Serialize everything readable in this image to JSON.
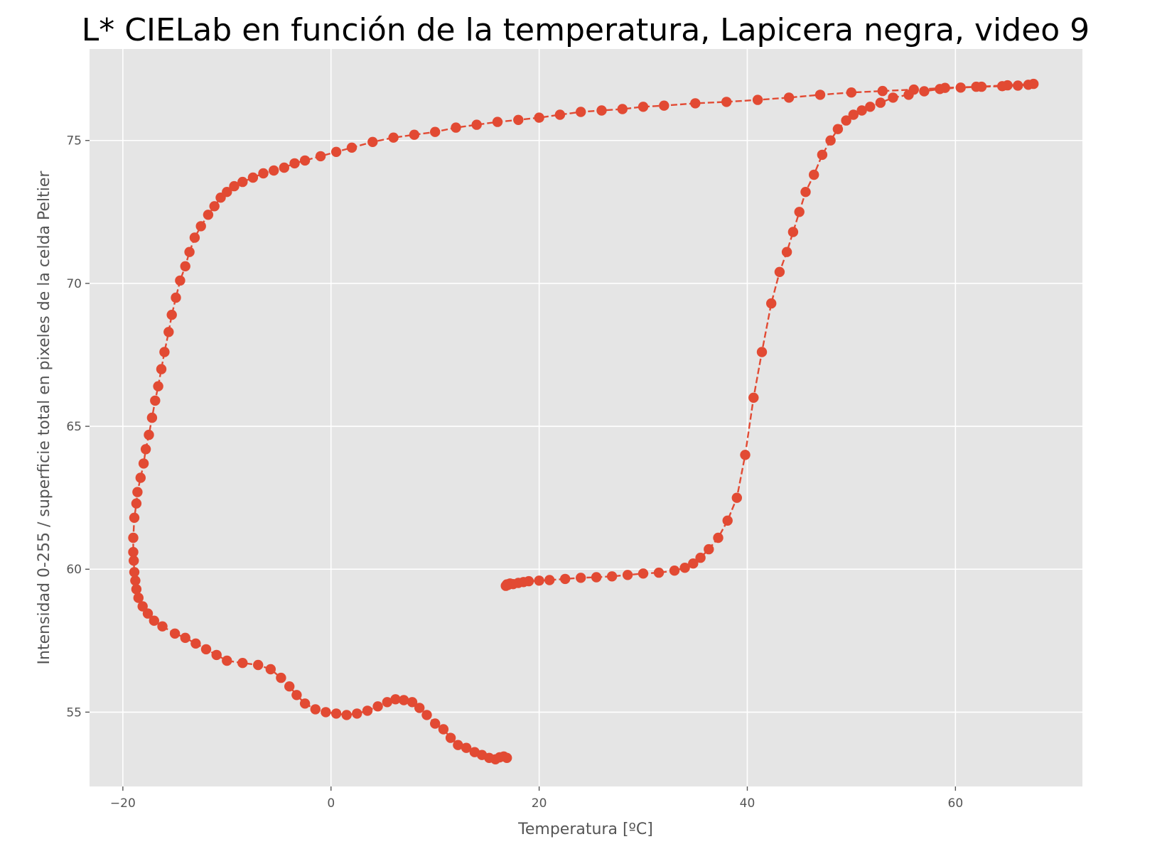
{
  "chart_data": {
    "type": "line",
    "title": "L* CIELab en función de la temperatura, Lapicera negra, video 9",
    "xlabel": "Temperatura [ºC]",
    "ylabel": "Intensidad 0-255 / superficie total en pixeles de la celda Peltier",
    "xlim": [
      -23.2,
      72.2
    ],
    "ylim": [
      52.4,
      78.2
    ],
    "xticks": [
      -20,
      0,
      20,
      40,
      60
    ],
    "xtick_labels": [
      "−20",
      "0",
      "20",
      "40",
      "60"
    ],
    "yticks": [
      55,
      60,
      65,
      70,
      75
    ],
    "ytick_labels": [
      "55",
      "60",
      "65",
      "70",
      "75"
    ],
    "grid": true,
    "style": "ggplot",
    "colors": {
      "series": "#E24A33",
      "plot_bg": "#E5E5E5",
      "grid": "#FFFFFF"
    },
    "series": [
      {
        "marker": "circle",
        "linestyle": "dashed",
        "points": [
          [
            16.9,
            53.4
          ],
          [
            16.6,
            53.45
          ],
          [
            16.2,
            53.42
          ],
          [
            15.8,
            53.35
          ],
          [
            15.2,
            53.4
          ],
          [
            14.5,
            53.5
          ],
          [
            13.8,
            53.6
          ],
          [
            13.0,
            53.75
          ],
          [
            12.2,
            53.85
          ],
          [
            11.5,
            54.1
          ],
          [
            10.8,
            54.4
          ],
          [
            10.0,
            54.6
          ],
          [
            9.2,
            54.9
          ],
          [
            8.5,
            55.15
          ],
          [
            7.8,
            55.35
          ],
          [
            7.0,
            55.42
          ],
          [
            6.2,
            55.45
          ],
          [
            5.4,
            55.35
          ],
          [
            4.5,
            55.2
          ],
          [
            3.5,
            55.05
          ],
          [
            2.5,
            54.95
          ],
          [
            1.5,
            54.9
          ],
          [
            0.5,
            54.95
          ],
          [
            -0.5,
            55.0
          ],
          [
            -1.5,
            55.1
          ],
          [
            -2.5,
            55.3
          ],
          [
            -3.3,
            55.6
          ],
          [
            -4.0,
            55.9
          ],
          [
            -4.8,
            56.2
          ],
          [
            -5.8,
            56.5
          ],
          [
            -7.0,
            56.65
          ],
          [
            -8.5,
            56.72
          ],
          [
            -10.0,
            56.8
          ],
          [
            -11.0,
            57.0
          ],
          [
            -12.0,
            57.2
          ],
          [
            -13.0,
            57.4
          ],
          [
            -14.0,
            57.6
          ],
          [
            -15.0,
            57.75
          ],
          [
            -16.2,
            58.0
          ],
          [
            -17.0,
            58.2
          ],
          [
            -17.6,
            58.45
          ],
          [
            -18.1,
            58.7
          ],
          [
            -18.5,
            59.0
          ],
          [
            -18.7,
            59.3
          ],
          [
            -18.8,
            59.6
          ],
          [
            -18.9,
            59.9
          ],
          [
            -18.95,
            60.3
          ],
          [
            -19.0,
            60.6
          ],
          [
            -19.0,
            61.1
          ],
          [
            -18.9,
            61.8
          ],
          [
            -18.7,
            62.3
          ],
          [
            -18.6,
            62.7
          ],
          [
            -18.3,
            63.2
          ],
          [
            -18.0,
            63.7
          ],
          [
            -17.8,
            64.2
          ],
          [
            -17.5,
            64.7
          ],
          [
            -17.2,
            65.3
          ],
          [
            -16.9,
            65.9
          ],
          [
            -16.6,
            66.4
          ],
          [
            -16.3,
            67.0
          ],
          [
            -16.0,
            67.6
          ],
          [
            -15.6,
            68.3
          ],
          [
            -15.3,
            68.9
          ],
          [
            -14.9,
            69.5
          ],
          [
            -14.5,
            70.1
          ],
          [
            -14.0,
            70.6
          ],
          [
            -13.6,
            71.1
          ],
          [
            -13.1,
            71.6
          ],
          [
            -12.5,
            72.0
          ],
          [
            -11.8,
            72.4
          ],
          [
            -11.2,
            72.7
          ],
          [
            -10.6,
            73.0
          ],
          [
            -10.0,
            73.2
          ],
          [
            -9.3,
            73.4
          ],
          [
            -8.5,
            73.55
          ],
          [
            -7.5,
            73.7
          ],
          [
            -6.5,
            73.85
          ],
          [
            -5.5,
            73.95
          ],
          [
            -4.5,
            74.05
          ],
          [
            -3.5,
            74.2
          ],
          [
            -2.5,
            74.3
          ],
          [
            -1.0,
            74.45
          ],
          [
            0.5,
            74.6
          ],
          [
            2.0,
            74.75
          ],
          [
            4.0,
            74.95
          ],
          [
            6.0,
            75.1
          ],
          [
            8.0,
            75.2
          ],
          [
            10.0,
            75.3
          ],
          [
            12.0,
            75.45
          ],
          [
            14.0,
            75.55
          ],
          [
            16.0,
            75.65
          ],
          [
            18.0,
            75.72
          ],
          [
            20.0,
            75.8
          ],
          [
            22.0,
            75.9
          ],
          [
            24.0,
            76.0
          ],
          [
            26.0,
            76.05
          ],
          [
            28.0,
            76.1
          ],
          [
            30.0,
            76.18
          ],
          [
            32.0,
            76.22
          ],
          [
            35.0,
            76.3
          ],
          [
            38.0,
            76.35
          ],
          [
            41.0,
            76.42
          ],
          [
            44.0,
            76.5
          ],
          [
            47.0,
            76.6
          ],
          [
            50.0,
            76.68
          ],
          [
            53.0,
            76.73
          ],
          [
            56.0,
            76.78
          ],
          [
            59.0,
            76.84
          ],
          [
            62.0,
            76.88
          ],
          [
            65.0,
            76.93
          ],
          [
            67.5,
            76.98
          ],
          [
            67.0,
            76.95
          ],
          [
            66.0,
            76.92
          ],
          [
            64.5,
            76.9
          ],
          [
            62.5,
            76.88
          ],
          [
            60.5,
            76.85
          ],
          [
            58.5,
            76.8
          ],
          [
            57.0,
            76.72
          ],
          [
            55.5,
            76.6
          ],
          [
            54.0,
            76.5
          ],
          [
            52.8,
            76.32
          ],
          [
            51.8,
            76.18
          ],
          [
            51.0,
            76.05
          ],
          [
            50.2,
            75.9
          ],
          [
            49.5,
            75.7
          ],
          [
            48.7,
            75.4
          ],
          [
            48.0,
            75.0
          ],
          [
            47.2,
            74.5
          ],
          [
            46.4,
            73.8
          ],
          [
            45.6,
            73.2
          ],
          [
            45.0,
            72.5
          ],
          [
            44.4,
            71.8
          ],
          [
            43.8,
            71.1
          ],
          [
            43.1,
            70.4
          ],
          [
            42.3,
            69.3
          ],
          [
            41.4,
            67.6
          ],
          [
            40.6,
            66.0
          ],
          [
            39.8,
            64.0
          ],
          [
            39.0,
            62.5
          ],
          [
            38.1,
            61.7
          ],
          [
            37.2,
            61.1
          ],
          [
            36.3,
            60.7
          ],
          [
            35.5,
            60.4
          ],
          [
            34.8,
            60.2
          ],
          [
            34.0,
            60.05
          ],
          [
            33.0,
            59.95
          ],
          [
            31.5,
            59.88
          ],
          [
            30.0,
            59.85
          ],
          [
            28.5,
            59.8
          ],
          [
            27.0,
            59.75
          ],
          [
            25.5,
            59.72
          ],
          [
            24.0,
            59.7
          ],
          [
            22.5,
            59.66
          ],
          [
            21.0,
            59.62
          ],
          [
            20.0,
            59.6
          ],
          [
            19.0,
            59.58
          ],
          [
            18.5,
            59.55
          ],
          [
            18.0,
            59.52
          ],
          [
            17.5,
            59.48
          ],
          [
            17.0,
            59.45
          ],
          [
            16.8,
            59.42
          ],
          [
            17.2,
            59.5
          ],
          [
            16.9,
            59.47
          ]
        ]
      }
    ]
  }
}
